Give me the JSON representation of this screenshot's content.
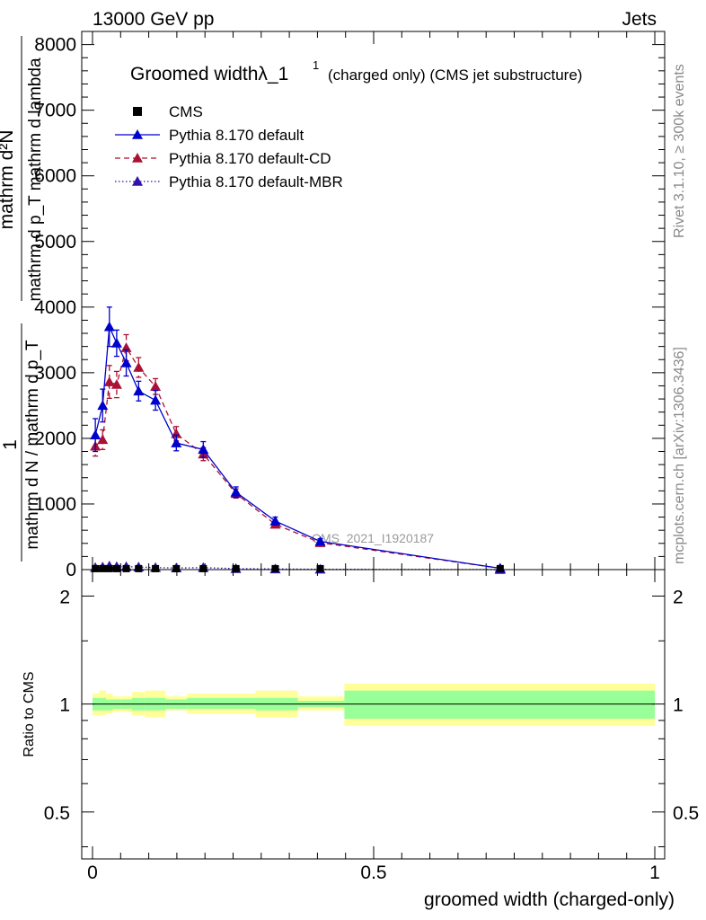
{
  "header": {
    "left": "13000 GeV pp",
    "right": "Jets"
  },
  "side_texts": {
    "rivet": "Rivet 3.1.10, ≥ 300k events",
    "mcplots": "mcplots.cern.ch [arXiv:1306.3436]"
  },
  "watermark": "CMS_2021_I1920187",
  "chart_data": [
    {
      "type": "line",
      "title": "Groomed widthλ_1",
      "title_sup": "1",
      "title_suffix": "(charged only) (CMS jet substructure)",
      "ylabel_numerator": "mathrm d²N",
      "ylabel_denominator": "mathrm d p_T mathrm d lambda",
      "ylabel_prefix_numerator": "1",
      "ylabel_prefix_denominator": "mathrm d N / mathrm d p_T",
      "xlim": [
        0,
        1
      ],
      "ylim": [
        0,
        8200
      ],
      "yticks": [
        0,
        1000,
        2000,
        3000,
        4000,
        5000,
        6000,
        7000,
        8000
      ],
      "grid": false,
      "legend_position": "top-left",
      "series": [
        {
          "name": "CMS",
          "color": "#000000",
          "marker": "square",
          "x": [
            0.005,
            0.018,
            0.03,
            0.043,
            0.06,
            0.082,
            0.112,
            0.149,
            0.197,
            0.255,
            0.325,
            0.405,
            0.725
          ],
          "y": [
            15,
            15,
            15,
            15,
            15,
            15,
            15,
            15,
            15,
            15,
            15,
            15,
            15
          ]
        },
        {
          "name": "Pythia 8.170 default",
          "color": "#0000cc",
          "marker": "triangle",
          "linestyle": "solid",
          "x": [
            0.005,
            0.018,
            0.03,
            0.043,
            0.06,
            0.082,
            0.112,
            0.149,
            0.197,
            0.255,
            0.325,
            0.405,
            0.725
          ],
          "y": [
            2050,
            2500,
            3700,
            3450,
            3150,
            2720,
            2580,
            1930,
            1830,
            1180,
            740,
            430,
            20
          ],
          "yerr": [
            250,
            250,
            300,
            200,
            200,
            150,
            150,
            120,
            120,
            80,
            60,
            40,
            10
          ]
        },
        {
          "name": "Pythia 8.170 default-CD",
          "color": "#aa1133",
          "marker": "triangle",
          "linestyle": "dashed",
          "x": [
            0.005,
            0.018,
            0.03,
            0.043,
            0.06,
            0.082,
            0.112,
            0.149,
            0.197,
            0.255,
            0.325,
            0.405,
            0.725
          ],
          "y": [
            1880,
            1980,
            2860,
            2820,
            3380,
            3080,
            2790,
            2070,
            1760,
            1160,
            690,
            410,
            20
          ],
          "yerr": [
            150,
            150,
            250,
            200,
            200,
            150,
            120,
            110,
            100,
            70,
            50,
            30,
            10
          ]
        },
        {
          "name": "Pythia 8.170 default-MBR",
          "color": "#3311aa",
          "marker": "triangle",
          "linestyle": "dotted",
          "x": [
            0.005,
            0.018,
            0.03,
            0.043,
            0.06,
            0.082,
            0.112,
            0.149,
            0.197,
            0.255,
            0.325,
            0.405,
            0.725
          ],
          "y": [
            30,
            40,
            55,
            45,
            45,
            40,
            30,
            25,
            30,
            15,
            10,
            5,
            1
          ]
        }
      ]
    },
    {
      "type": "area",
      "ylabel": "Ratio to CMS",
      "xlabel": "groomed width (charged-only)",
      "xlim": [
        0,
        1
      ],
      "ylim": [
        0.37,
        2.37
      ],
      "ytick_labels": [
        "0.5",
        "1",
        "2"
      ],
      "yticks": [
        0.5,
        1,
        2
      ],
      "xtick_labels": [
        "0",
        "0.5",
        "1"
      ],
      "xticks": [
        0,
        0.5,
        1
      ],
      "reference_line": 1,
      "bins": [
        {
          "x": [
            0.0,
            0.012
          ],
          "inner": [
            0.96,
            1.04
          ],
          "outer": [
            0.93,
            1.07
          ]
        },
        {
          "x": [
            0.012,
            0.024
          ],
          "inner": [
            0.96,
            1.04
          ],
          "outer": [
            0.93,
            1.09
          ]
        },
        {
          "x": [
            0.024,
            0.036
          ],
          "inner": [
            0.96,
            1.03
          ],
          "outer": [
            0.94,
            1.07
          ]
        },
        {
          "x": [
            0.036,
            0.05
          ],
          "inner": [
            0.97,
            1.03
          ],
          "outer": [
            0.95,
            1.05
          ]
        },
        {
          "x": [
            0.05,
            0.07
          ],
          "inner": [
            0.97,
            1.03
          ],
          "outer": [
            0.95,
            1.05
          ]
        },
        {
          "x": [
            0.07,
            0.094
          ],
          "inner": [
            0.96,
            1.04
          ],
          "outer": [
            0.93,
            1.08
          ]
        },
        {
          "x": [
            0.094,
            0.13
          ],
          "inner": [
            0.96,
            1.04
          ],
          "outer": [
            0.92,
            1.09
          ]
        },
        {
          "x": [
            0.13,
            0.168
          ],
          "inner": [
            0.97,
            1.03
          ],
          "outer": [
            0.96,
            1.05
          ]
        },
        {
          "x": [
            0.168,
            0.226
          ],
          "inner": [
            0.97,
            1.04
          ],
          "outer": [
            0.94,
            1.07
          ]
        },
        {
          "x": [
            0.226,
            0.29
          ],
          "inner": [
            0.97,
            1.04
          ],
          "outer": [
            0.94,
            1.07
          ]
        },
        {
          "x": [
            0.29,
            0.365
          ],
          "inner": [
            0.96,
            1.04
          ],
          "outer": [
            0.92,
            1.09
          ]
        },
        {
          "x": [
            0.365,
            0.448
          ],
          "inner": [
            0.98,
            1.02
          ],
          "outer": [
            0.96,
            1.05
          ]
        },
        {
          "x": [
            0.448,
            1.0
          ],
          "inner": [
            0.91,
            1.09
          ],
          "outer": [
            0.87,
            1.14
          ]
        }
      ]
    }
  ]
}
